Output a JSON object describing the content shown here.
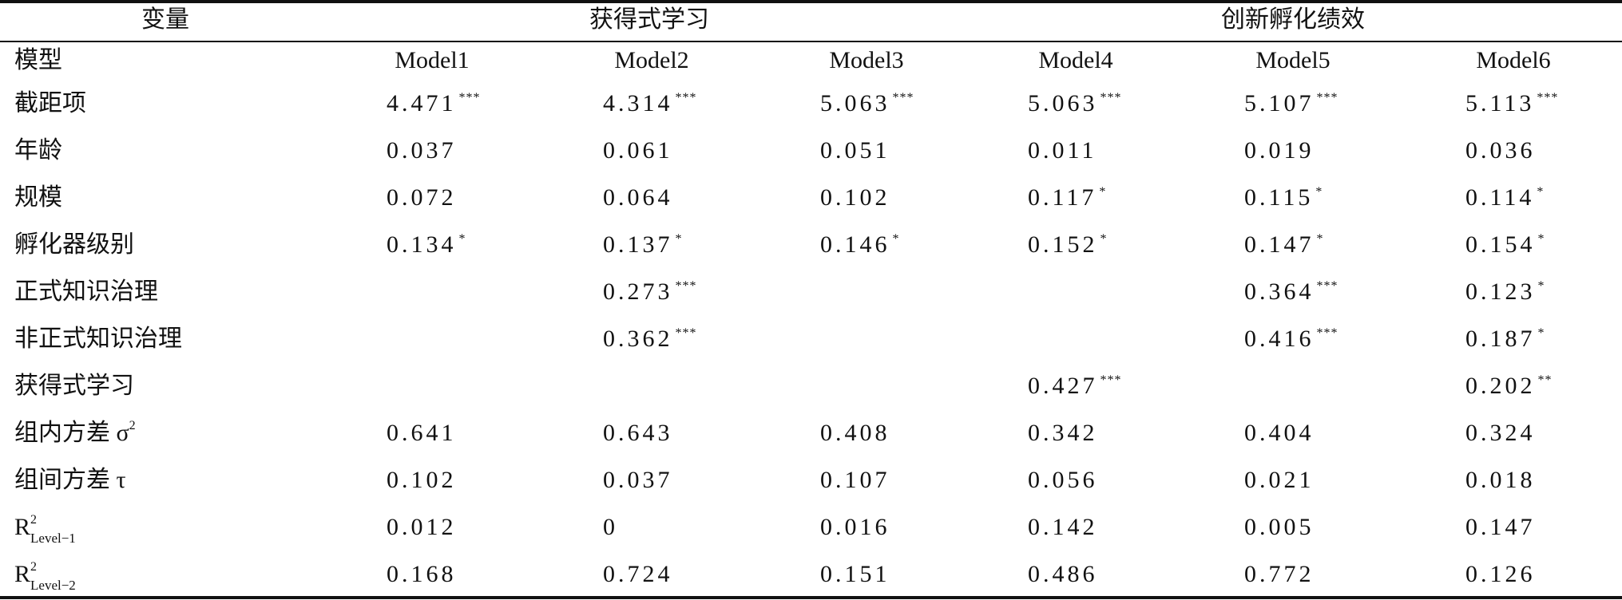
{
  "header": {
    "variable": "变量",
    "groups": [
      "获得式学习",
      "创新孵化绩效"
    ]
  },
  "model_row": {
    "label": "模型",
    "models": [
      "Model1",
      "Model2",
      "Model3",
      "Model4",
      "Model5",
      "Model6"
    ]
  },
  "table": {
    "rows": [
      {
        "label": {
          "text": "截距项"
        },
        "cells": [
          {
            "value": "4.471",
            "stars": "***"
          },
          {
            "value": "4.314",
            "stars": "***"
          },
          {
            "value": "5.063",
            "stars": "***"
          },
          {
            "value": "5.063",
            "stars": "***"
          },
          {
            "value": "5.107",
            "stars": "***"
          },
          {
            "value": "5.113",
            "stars": "***"
          }
        ]
      },
      {
        "label": {
          "text": "年龄"
        },
        "cells": [
          {
            "value": "0.037"
          },
          {
            "value": "0.061"
          },
          {
            "value": "0.051"
          },
          {
            "value": "0.011"
          },
          {
            "value": "0.019"
          },
          {
            "value": "0.036"
          }
        ]
      },
      {
        "label": {
          "text": "规模"
        },
        "cells": [
          {
            "value": "0.072"
          },
          {
            "value": "0.064"
          },
          {
            "value": "0.102"
          },
          {
            "value": "0.117",
            "stars": "*"
          },
          {
            "value": "0.115",
            "stars": "*"
          },
          {
            "value": "0.114",
            "stars": "*"
          }
        ]
      },
      {
        "label": {
          "text": "孵化器级别"
        },
        "cells": [
          {
            "value": "0.134",
            "stars": "*"
          },
          {
            "value": "0.137",
            "stars": "*"
          },
          {
            "value": "0.146",
            "stars": "*"
          },
          {
            "value": "0.152",
            "stars": "*"
          },
          {
            "value": "0.147",
            "stars": "*"
          },
          {
            "value": "0.154",
            "stars": "*"
          }
        ]
      },
      {
        "label": {
          "text": "正式知识治理"
        },
        "cells": [
          null,
          {
            "value": "0.273",
            "stars": "***"
          },
          null,
          null,
          {
            "value": "0.364",
            "stars": "***"
          },
          {
            "value": "0.123",
            "stars": "*"
          }
        ]
      },
      {
        "label": {
          "text": "非正式知识治理"
        },
        "cells": [
          null,
          {
            "value": "0.362",
            "stars": "***"
          },
          null,
          null,
          {
            "value": "0.416",
            "stars": "***"
          },
          {
            "value": "0.187",
            "stars": "*"
          }
        ]
      },
      {
        "label": {
          "text": "获得式学习"
        },
        "cells": [
          null,
          null,
          null,
          {
            "value": "0.427",
            "stars": "***"
          },
          null,
          {
            "value": "0.202",
            "stars": "**"
          }
        ]
      },
      {
        "label": {
          "text": "组内方差 σ",
          "sup": "2"
        },
        "cells": [
          {
            "value": "0.641"
          },
          {
            "value": "0.643"
          },
          {
            "value": "0.408"
          },
          {
            "value": "0.342"
          },
          {
            "value": "0.404"
          },
          {
            "value": "0.324"
          }
        ]
      },
      {
        "label": {
          "text": "组间方差 τ"
        },
        "cells": [
          {
            "value": "0.102"
          },
          {
            "value": "0.037"
          },
          {
            "value": "0.107"
          },
          {
            "value": "0.056"
          },
          {
            "value": "0.021"
          },
          {
            "value": "0.018"
          }
        ]
      },
      {
        "label": {
          "text": "R",
          "sup": "2",
          "sub": "Level−1"
        },
        "cells": [
          {
            "value": "0.012"
          },
          {
            "value": "0"
          },
          {
            "value": "0.016"
          },
          {
            "value": "0.142"
          },
          {
            "value": "0.005"
          },
          {
            "value": "0.147"
          }
        ]
      },
      {
        "label": {
          "text": "R",
          "sup": "2",
          "sub": "Level−2"
        },
        "cells": [
          {
            "value": "0.168"
          },
          {
            "value": "0.724"
          },
          {
            "value": "0.151"
          },
          {
            "value": "0.486"
          },
          {
            "value": "0.772"
          },
          {
            "value": "0.126"
          }
        ]
      }
    ]
  }
}
